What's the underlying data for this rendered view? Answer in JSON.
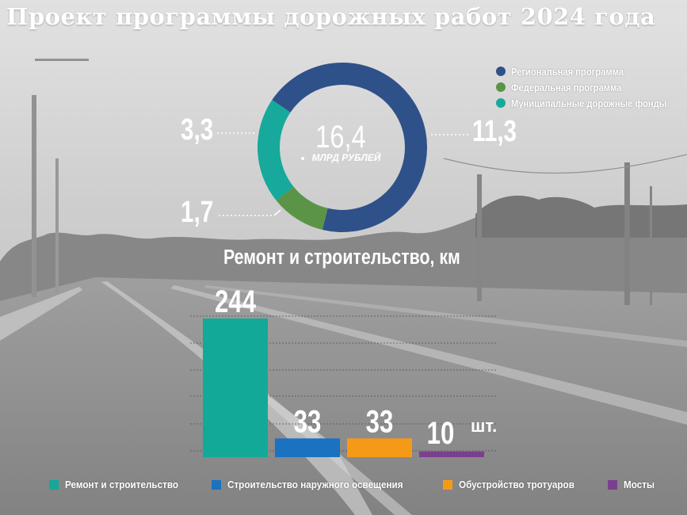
{
  "title": "Проект программы дорожных работ 2024 года",
  "colors": {
    "regional": "#2f5189",
    "federal": "#5b9446",
    "municipal": "#17a99b",
    "repair": "#13a999",
    "lighting": "#1a72c0",
    "sidewalks": "#f59a16",
    "bridges": "#7b3f8f",
    "text": "#ffffff"
  },
  "chart_data": [
    {
      "type": "pie",
      "variant": "donut",
      "center_value": "16,4",
      "center_label": "МЛРД РУБЛЕЙ",
      "total": 16.4,
      "unit": "млрд рублей",
      "slices": [
        {
          "name": "Региональная программа",
          "value": 11.3,
          "label": "11,3",
          "color": "#2f5189"
        },
        {
          "name": "Федеральная программа",
          "value": 1.7,
          "label": "1,7",
          "color": "#5b9446"
        },
        {
          "name": "Муниципальные дорожные фонды",
          "value": 3.3,
          "label": "3,3",
          "color": "#17a99b"
        }
      ],
      "legend_position": "top-right"
    },
    {
      "type": "bar",
      "title": "Ремонт и строительство, км",
      "categories": [
        "Ремонт и строительство",
        "Строительство наружного освещения",
        "Обустройство тротуаров",
        "Мосты"
      ],
      "values": [
        244,
        33,
        33,
        10
      ],
      "value_labels": [
        "244",
        "33",
        "33",
        "10"
      ],
      "unit_notes": [
        "",
        "",
        "",
        "шт."
      ],
      "display_heights": [
        244,
        33,
        33,
        10
      ],
      "colors": [
        "#13a999",
        "#1a72c0",
        "#f59a16",
        "#7b3f8f"
      ],
      "grid": true,
      "ylim": [
        0,
        250
      ],
      "legend_position": "bottom"
    }
  ]
}
